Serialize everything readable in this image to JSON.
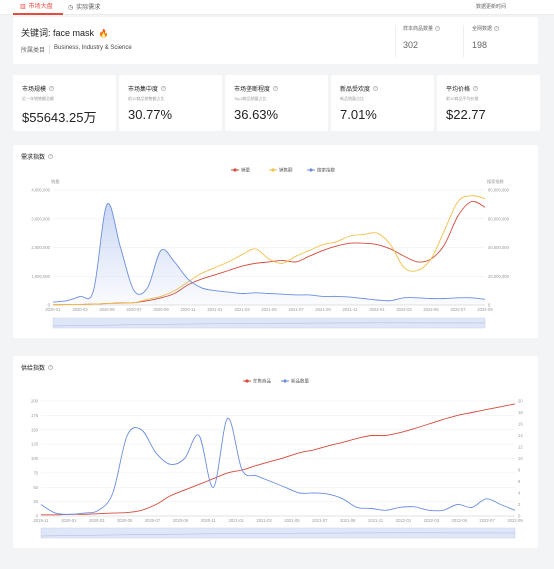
{
  "tabs": [
    {
      "label": "市场大盘",
      "icon": "chart-icon",
      "active": true
    },
    {
      "label": "实际需求",
      "icon": "clock-icon",
      "active": false
    }
  ],
  "top_right_link": "数据更新时间",
  "keyword_card": {
    "keyword_label": "关键词:",
    "keyword_value": "face mask",
    "category_label": "所属类目",
    "category_value": "Business, Industry & Science",
    "stats": [
      {
        "label": "样本商品数量",
        "value": "302"
      },
      {
        "label": "全网数据",
        "value": "198"
      }
    ]
  },
  "metrics": [
    {
      "title": "市场规模",
      "sub": "近一年销售额总额",
      "value": "$55643.25万"
    },
    {
      "title": "市场集中度",
      "sub": "前10商品销售额占比",
      "value": "30.77%"
    },
    {
      "title": "市场垄断程度",
      "sub": "Top3商品销量占比",
      "value": "36.63%"
    },
    {
      "title": "新品受欢度",
      "sub": "新品销量占比",
      "value": "7.01%"
    },
    {
      "title": "平均价格",
      "sub": "前10商品平均价格",
      "value": "$22.77"
    }
  ],
  "demand": {
    "title": "需求指数",
    "left_axis_caption": "销量",
    "right_axis_caption": "搜索指数",
    "colors": {
      "sales": "#d64a3a",
      "sales_amount": "#f3c04a",
      "search": "#6b8fe0"
    },
    "chart_data": {
      "type": "line",
      "x": [
        "2020-01",
        "2020-02",
        "2020-03",
        "2020-04",
        "2020-05",
        "2020-06",
        "2020-07",
        "2020-08",
        "2020-09",
        "2020-10",
        "2020-11",
        "2020-12",
        "2021-01",
        "2021-02",
        "2021-03",
        "2021-04",
        "2021-05",
        "2021-06",
        "2021-07",
        "2021-08",
        "2021-09",
        "2021-10",
        "2021-11",
        "2021-12",
        "2022-01",
        "2022-02",
        "2022-03",
        "2022-04",
        "2022-05",
        "2022-06",
        "2022-07",
        "2022-08",
        "2022-09"
      ],
      "x_tick_labels": [
        "2020-01",
        "2020-03",
        "2020-05",
        "2020-07",
        "2020-09",
        "2020-11",
        "2021-01",
        "2021-03",
        "2021-05",
        "2021-07",
        "2021-09",
        "2021-11",
        "2022-01",
        "2022-03",
        "2022-05",
        "2022-07",
        "2022-09"
      ],
      "ylim_left": [
        0,
        4000000
      ],
      "yticks_left": [
        "0",
        "1,000,000",
        "2,000,000",
        "3,000,000",
        "4,000,000"
      ],
      "ylim_right": [
        0,
        80000000
      ],
      "yticks_right": [
        "0",
        "20,000,000",
        "40,000,000",
        "60,000,000",
        "80,000,000"
      ],
      "series": [
        {
          "name": "销量",
          "axis": "left",
          "values": [
            10000,
            15000,
            20000,
            30000,
            50000,
            70000,
            80000,
            150000,
            250000,
            400000,
            700000,
            900000,
            1050000,
            1200000,
            1350000,
            1450000,
            1500000,
            1550000,
            1500000,
            1700000,
            1900000,
            2050000,
            2150000,
            2150000,
            2100000,
            1950000,
            1700000,
            1500000,
            1600000,
            2100000,
            3100000,
            3600000,
            3400000
          ]
        },
        {
          "name": "销售额",
          "axis": "left",
          "values": [
            10000,
            15000,
            20000,
            30000,
            50000,
            60000,
            80000,
            200000,
            300000,
            500000,
            800000,
            1100000,
            1300000,
            1500000,
            1750000,
            1950000,
            1600000,
            1450000,
            1700000,
            1900000,
            2100000,
            2200000,
            2400000,
            2450000,
            2500000,
            2100000,
            1300000,
            1200000,
            1600000,
            2600000,
            3600000,
            3800000,
            3700000
          ]
        },
        {
          "name": "搜索指数",
          "axis": "right",
          "values": [
            2000000,
            3000000,
            6000000,
            10000000,
            70000000,
            40000000,
            10000000,
            12000000,
            38000000,
            30000000,
            18000000,
            12000000,
            10000000,
            9000000,
            8000000,
            8500000,
            8000000,
            7500000,
            7000000,
            7000000,
            6000000,
            6000000,
            5500000,
            4500000,
            3500000,
            3000000,
            5000000,
            5000000,
            4500000,
            4500000,
            5000000,
            5000000,
            4000000
          ]
        }
      ]
    }
  },
  "supply": {
    "title": "供给指数",
    "colors": {
      "listings": "#d64a3a",
      "new_items": "#6b8fe0"
    },
    "chart_data": {
      "type": "line",
      "x": [
        "2019-11",
        "2019-12",
        "2020-01",
        "2020-02",
        "2020-03",
        "2020-04",
        "2020-05",
        "2020-06",
        "2020-07",
        "2020-08",
        "2020-09",
        "2020-10",
        "2020-11",
        "2020-12",
        "2021-01",
        "2021-02",
        "2021-03",
        "2021-04",
        "2021-05",
        "2021-06",
        "2021-07",
        "2021-08",
        "2021-09",
        "2021-10",
        "2021-11",
        "2021-12",
        "2022-01",
        "2022-02",
        "2022-03",
        "2022-04",
        "2022-05",
        "2022-06",
        "2022-07",
        "2022-08"
      ],
      "x_tick_labels": [
        "2019-11",
        "2020-01",
        "2020-03",
        "2020-05",
        "2020-07",
        "2020-09",
        "2020-11",
        "2021-01",
        "2021-03",
        "2021-05",
        "2021-07",
        "2021-09",
        "2021-11",
        "2022-01",
        "2022-03",
        "2022-05",
        "2022-07",
        "2022-09"
      ],
      "ylim_left": [
        0,
        200
      ],
      "yticks_left": [
        "0",
        "25",
        "50",
        "75",
        "100",
        "125",
        "150",
        "175",
        "200"
      ],
      "ylim_right": [
        0,
        20
      ],
      "yticks_right": [
        "0",
        "2",
        "4",
        "6",
        "8",
        "10",
        "12",
        "14",
        "16",
        "18",
        "20"
      ],
      "series": [
        {
          "name": "在售商品",
          "axis": "left",
          "values": [
            2,
            2,
            3,
            3,
            4,
            5,
            6,
            10,
            20,
            35,
            45,
            55,
            65,
            75,
            80,
            88,
            95,
            102,
            110,
            115,
            122,
            128,
            135,
            140,
            140,
            145,
            152,
            160,
            168,
            175,
            180,
            185,
            190,
            195
          ]
        },
        {
          "name": "新品数量",
          "axis": "right",
          "values": [
            2,
            0.5,
            0.3,
            0.5,
            1,
            4,
            14,
            15,
            11,
            9,
            10,
            14,
            5,
            17,
            8,
            7,
            6,
            5,
            4,
            4,
            3.8,
            3,
            1.5,
            1.3,
            1,
            1.5,
            1.6,
            1,
            1,
            2,
            1.5,
            3,
            2,
            1
          ]
        }
      ]
    }
  }
}
